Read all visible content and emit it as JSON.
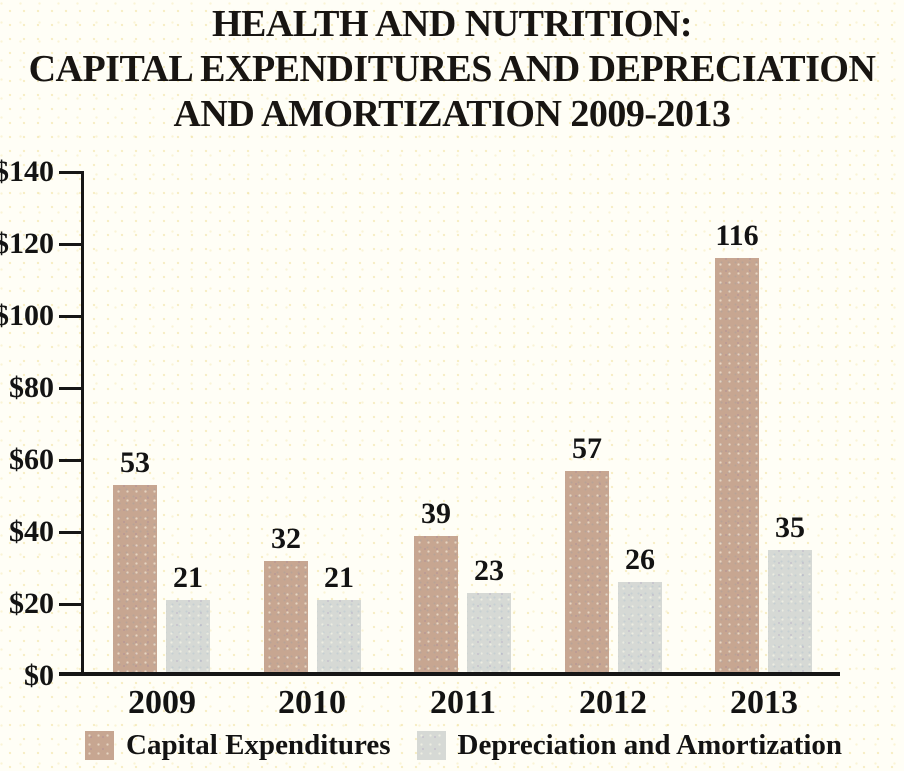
{
  "chart_data": {
    "type": "bar",
    "title": "HEALTH AND NUTRITION: CAPITAL EXPENDITURES AND DEPRECIATION AND AMORTIZATION 2009-2013",
    "title_lines": [
      "HEALTH AND NUTRITION:",
      "CAPITAL EXPENDITURES AND DEPRECIATION",
      "AND AMORTIZATION 2009-2013"
    ],
    "categories": [
      "2009",
      "2010",
      "2011",
      "2012",
      "2013"
    ],
    "series": [
      {
        "name": "Capital Expenditures",
        "color": "#c7a691",
        "values": [
          53,
          32,
          39,
          57,
          116
        ]
      },
      {
        "name": "Depreciation and Amortization",
        "color": "#d6d9d5",
        "values": [
          21,
          21,
          23,
          26,
          35
        ]
      }
    ],
    "xlabel": "",
    "ylabel": "",
    "ylim": [
      0,
      140
    ],
    "ytick_step": 20,
    "ytick_labels": [
      "$0",
      "$20",
      "$40",
      "$60",
      "$80",
      "$100",
      "$120",
      "$140"
    ],
    "value_labels_shown": true,
    "grid": false,
    "legend_position": "bottom",
    "axis_color": "#161616",
    "background_color": "#fffef6"
  }
}
